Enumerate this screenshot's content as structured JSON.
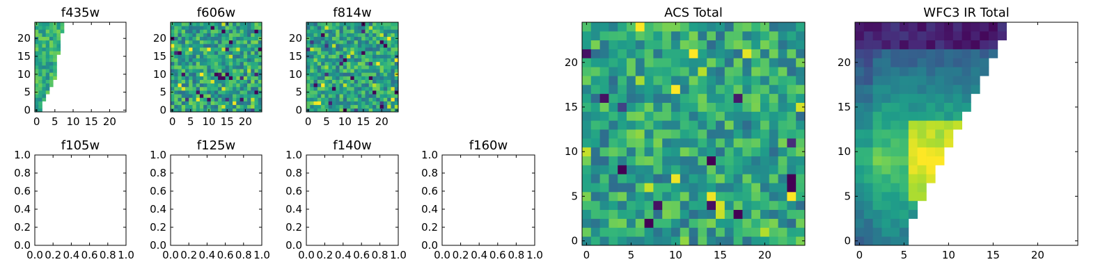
{
  "chart_data": [
    {
      "type": "heatmap",
      "title": "f435w",
      "xlim": [
        -0.5,
        24.5
      ],
      "ylim": [
        -0.5,
        24.5
      ],
      "xticks": [
        0,
        5,
        10,
        15,
        20
      ],
      "yticks": [
        0,
        5,
        10,
        15,
        20
      ],
      "xtick_labels": [
        "0",
        "5",
        "10",
        "15",
        "20"
      ],
      "ytick_labels": [
        "0",
        "5",
        "10",
        "15",
        "20"
      ],
      "colormap": "viridis",
      "mask": "wedge-f435w",
      "seed": 11,
      "grid": false
    },
    {
      "type": "heatmap",
      "title": "f606w",
      "xlim": [
        -0.5,
        24.5
      ],
      "ylim": [
        -0.5,
        24.5
      ],
      "xticks": [
        0,
        5,
        10,
        15,
        20
      ],
      "yticks": [
        0,
        5,
        10,
        15,
        20
      ],
      "xtick_labels": [
        "0",
        "5",
        "10",
        "15",
        "20"
      ],
      "ytick_labels": [
        "0",
        "5",
        "10",
        "15",
        "20"
      ],
      "colormap": "viridis",
      "mask": "none",
      "seed": 23,
      "grid": false
    },
    {
      "type": "heatmap",
      "title": "f814w",
      "xlim": [
        -0.5,
        24.5
      ],
      "ylim": [
        -0.5,
        24.5
      ],
      "xticks": [
        0,
        5,
        10,
        15,
        20
      ],
      "yticks": [
        0,
        5,
        10,
        15,
        20
      ],
      "xtick_labels": [
        "0",
        "5",
        "10",
        "15",
        "20"
      ],
      "ytick_labels": [
        "0",
        "5",
        "10",
        "15",
        "20"
      ],
      "colormap": "viridis",
      "mask": "none",
      "seed": 37,
      "grid": false
    },
    {
      "type": "scatter",
      "title": "f105w",
      "xlim": [
        0.0,
        1.0
      ],
      "ylim": [
        0.0,
        1.0
      ],
      "xticks": [
        0,
        0.2,
        0.4,
        0.6,
        0.8,
        1.0
      ],
      "yticks": [
        0,
        0.2,
        0.4,
        0.6,
        0.8,
        1.0
      ],
      "xtick_labels": [
        "0.0",
        "0.2",
        "0.4",
        "0.6",
        "0.8",
        "1.0"
      ],
      "ytick_labels": [
        "0.0",
        "0.2",
        "0.4",
        "0.6",
        "0.8",
        "1.0"
      ],
      "series": [],
      "grid": false
    },
    {
      "type": "scatter",
      "title": "f125w",
      "xlim": [
        0.0,
        1.0
      ],
      "ylim": [
        0.0,
        1.0
      ],
      "xticks": [
        0,
        0.2,
        0.4,
        0.6,
        0.8,
        1.0
      ],
      "yticks": [
        0,
        0.2,
        0.4,
        0.6,
        0.8,
        1.0
      ],
      "xtick_labels": [
        "0.0",
        "0.2",
        "0.4",
        "0.6",
        "0.8",
        "1.0"
      ],
      "ytick_labels": [
        "0.0",
        "0.2",
        "0.4",
        "0.6",
        "0.8",
        "1.0"
      ],
      "series": [],
      "grid": false
    },
    {
      "type": "scatter",
      "title": "f140w",
      "xlim": [
        0.0,
        1.0
      ],
      "ylim": [
        0.0,
        1.0
      ],
      "xticks": [
        0,
        0.2,
        0.4,
        0.6,
        0.8,
        1.0
      ],
      "yticks": [
        0,
        0.2,
        0.4,
        0.6,
        0.8,
        1.0
      ],
      "xtick_labels": [
        "0.0",
        "0.2",
        "0.4",
        "0.6",
        "0.8",
        "1.0"
      ],
      "ytick_labels": [
        "0.0",
        "0.2",
        "0.4",
        "0.6",
        "0.8",
        "1.0"
      ],
      "series": [],
      "grid": false
    },
    {
      "type": "scatter",
      "title": "f160w",
      "xlim": [
        0.0,
        1.0
      ],
      "ylim": [
        0.0,
        1.0
      ],
      "xticks": [
        0,
        0.2,
        0.4,
        0.6,
        0.8,
        1.0
      ],
      "yticks": [
        0,
        0.2,
        0.4,
        0.6,
        0.8,
        1.0
      ],
      "xtick_labels": [
        "0.0",
        "0.2",
        "0.4",
        "0.6",
        "0.8",
        "1.0"
      ],
      "ytick_labels": [
        "0.0",
        "0.2",
        "0.4",
        "0.6",
        "0.8",
        "1.0"
      ],
      "series": [],
      "grid": false
    },
    {
      "type": "heatmap",
      "title": "ACS Total",
      "xlim": [
        -0.5,
        24.5
      ],
      "ylim": [
        -0.5,
        24.5
      ],
      "xticks": [
        0,
        5,
        10,
        15,
        20
      ],
      "yticks": [
        0,
        5,
        10,
        15,
        20
      ],
      "xtick_labels": [
        "0",
        "5",
        "10",
        "15",
        "20"
      ],
      "ytick_labels": [
        "0",
        "5",
        "10",
        "15",
        "20"
      ],
      "colormap": "viridis",
      "mask": "none",
      "seed": 53,
      "grid": false
    },
    {
      "type": "heatmap",
      "title": "WFC3 IR Total",
      "xlim": [
        -0.5,
        24.5
      ],
      "ylim": [
        -0.5,
        24.5
      ],
      "xticks": [
        0,
        5,
        10,
        15,
        20
      ],
      "yticks": [
        0,
        5,
        10,
        15,
        20
      ],
      "xtick_labels": [
        "0",
        "5",
        "10",
        "15",
        "20"
      ],
      "ytick_labels": [
        "0",
        "5",
        "10",
        "15",
        "20"
      ],
      "colormap": "viridis",
      "mask": "wedge-wfc3",
      "seed": 71,
      "grid": false
    }
  ],
  "colors": {
    "viridis_dark": "#440154",
    "viridis_blue": "#3b528b",
    "viridis_teal": "#21918c",
    "viridis_green": "#5ec962",
    "viridis_yellow": "#fde725"
  }
}
